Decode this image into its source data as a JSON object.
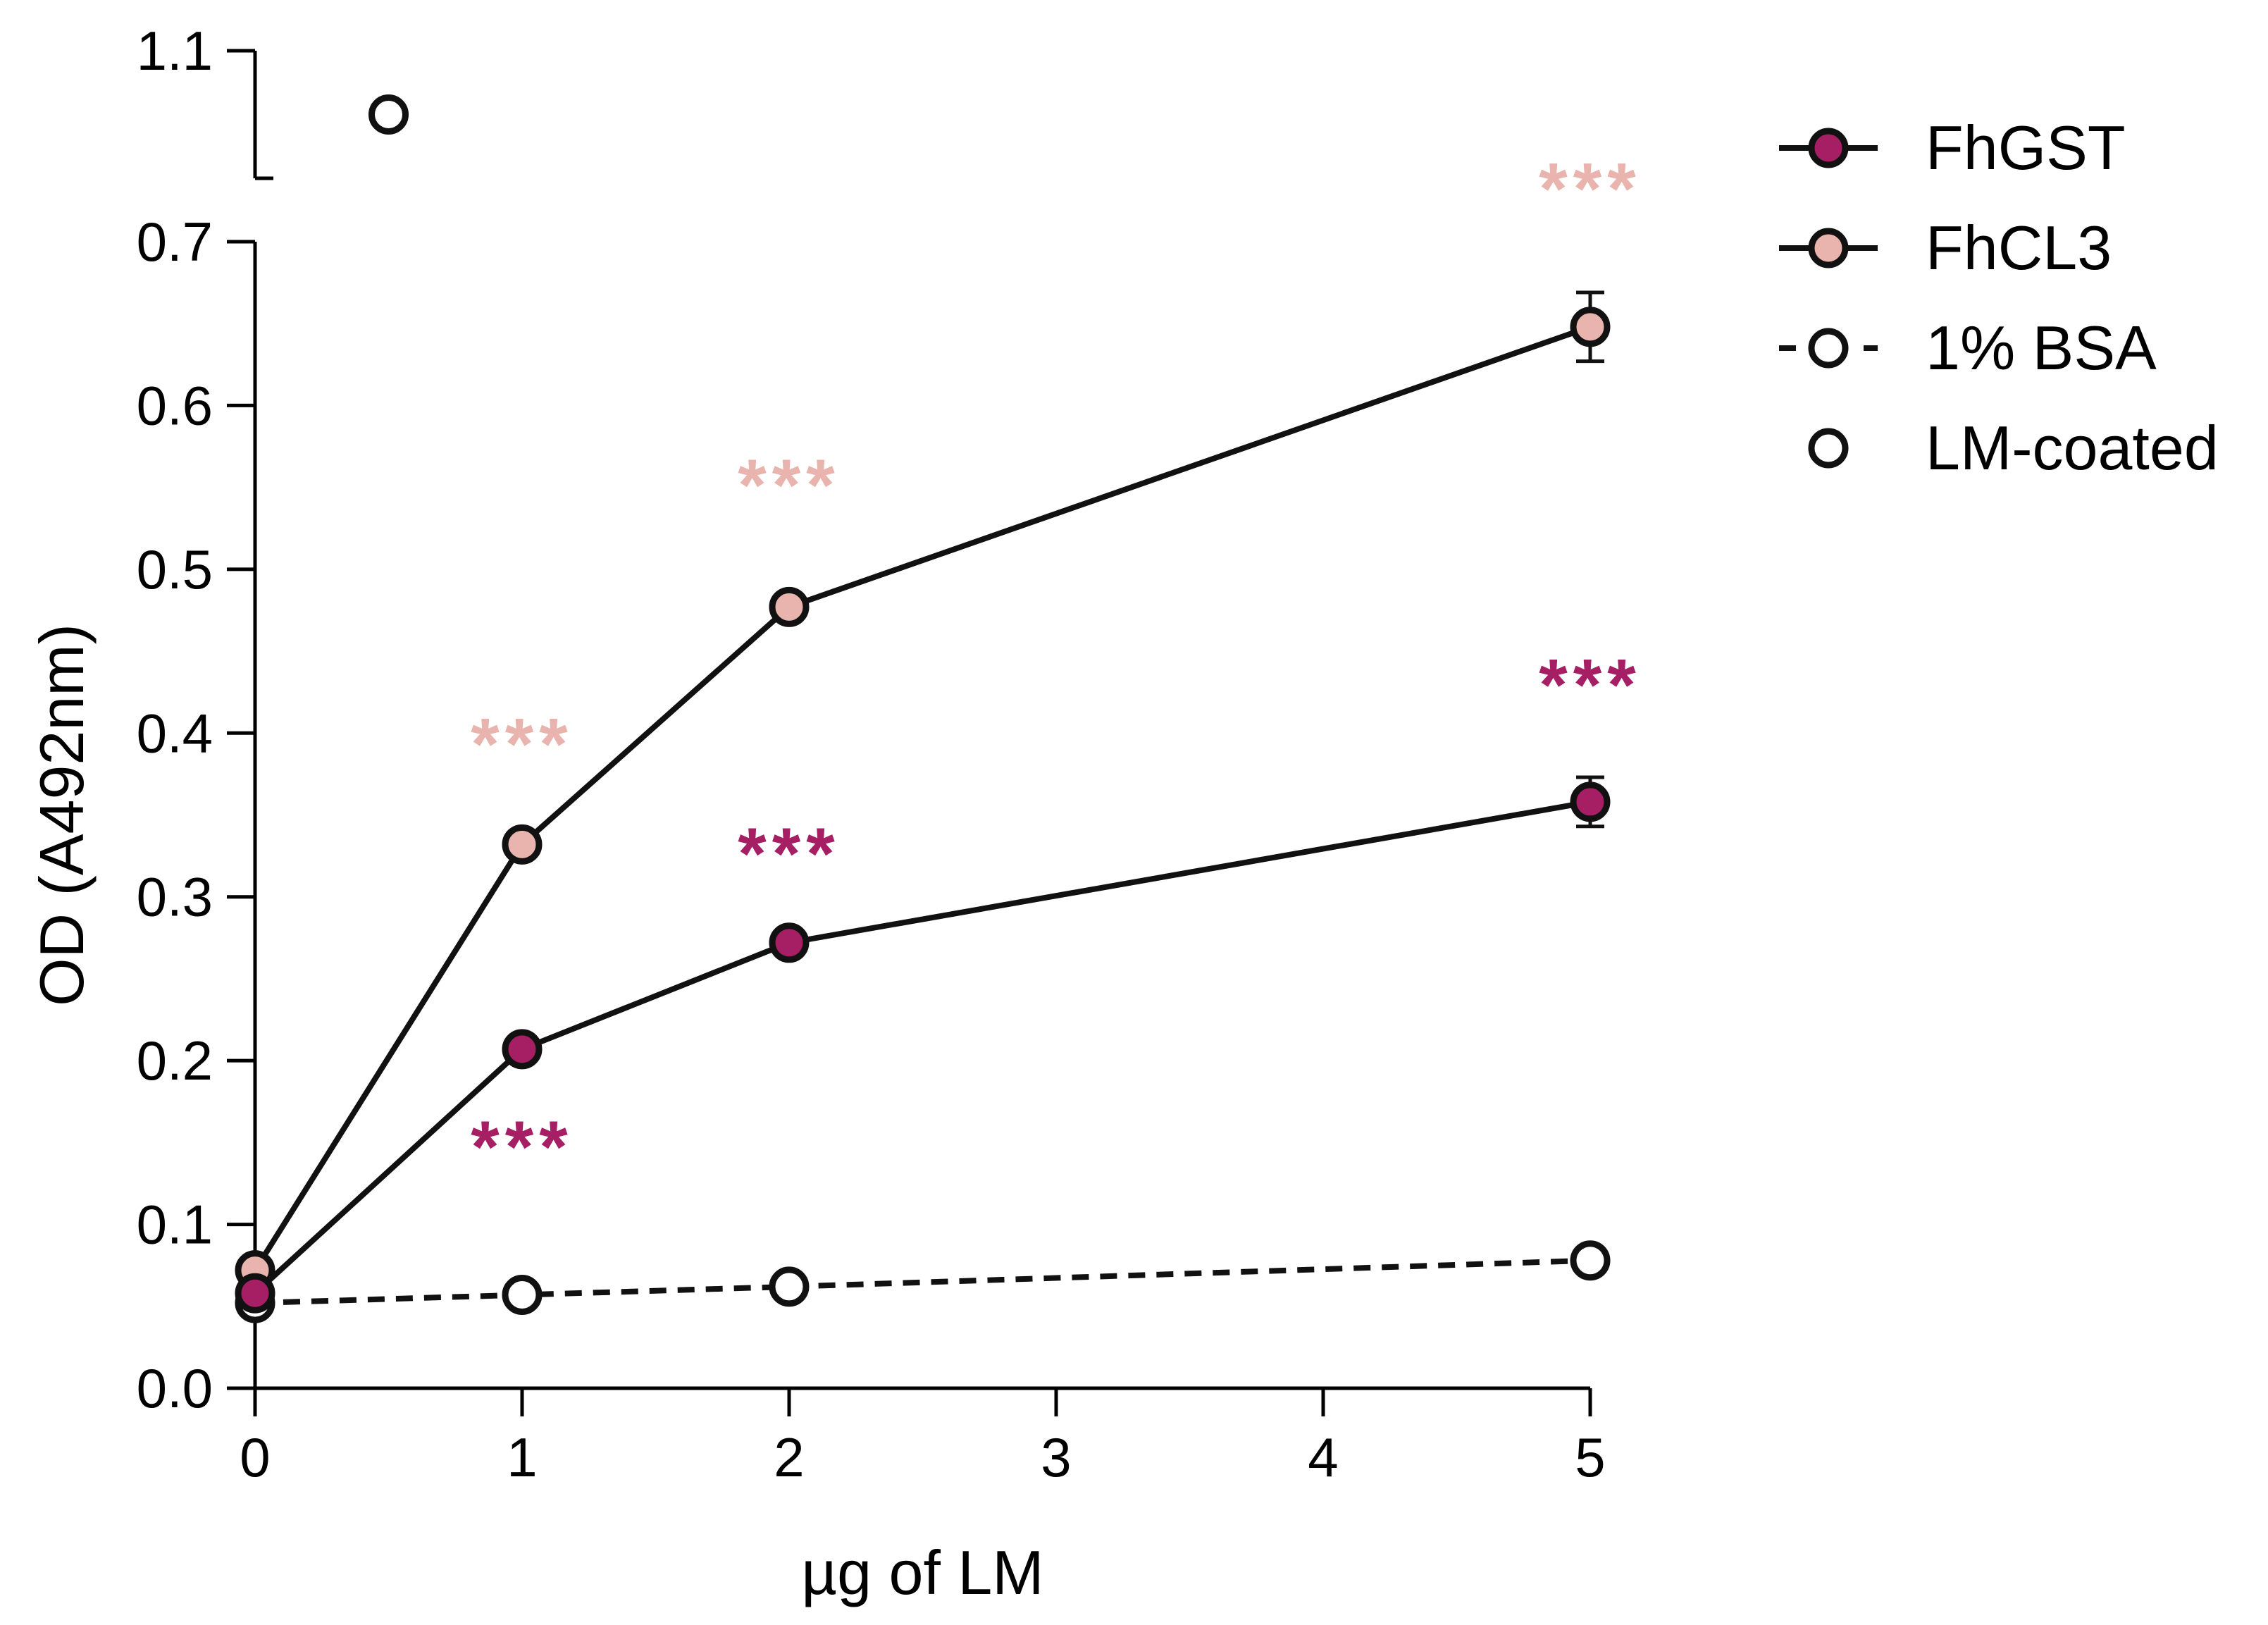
{
  "chart_data": {
    "type": "line",
    "xlabel": "µg of LM",
    "ylabel": "OD (A492nm)",
    "x_ticks": [
      "0",
      "1",
      "2",
      "3",
      "4",
      "5"
    ],
    "y_ticks": [
      "0.0",
      "0.1",
      "0.2",
      "0.3",
      "0.4",
      "0.5",
      "0.6",
      "0.7"
    ],
    "y_break_ticks": [
      "1.1"
    ],
    "ylim_lower": [
      0,
      0.7
    ],
    "ylim_upper": [
      1.02,
      1.1
    ],
    "xlim": [
      0,
      5
    ],
    "colors": {
      "fhgst": "#a61e63",
      "fhcl3": "#e8b4ad",
      "bsa": "#ffffff",
      "lm": "#ffffff",
      "stroke": "#111111"
    },
    "series": [
      {
        "name": "FhGST",
        "key": "fhgst",
        "line": "solid",
        "x": [
          0,
          1,
          2,
          5
        ],
        "values": [
          0.058,
          0.207,
          0.272,
          0.358
        ],
        "errors": [
          0,
          0,
          0,
          0.015
        ]
      },
      {
        "name": "FhCL3",
        "key": "fhcl3",
        "line": "solid",
        "x": [
          0,
          1,
          2,
          5
        ],
        "values": [
          0.072,
          0.332,
          0.477,
          0.648
        ],
        "errors": [
          0,
          0,
          0,
          0.021
        ]
      },
      {
        "name": "1% BSA",
        "key": "bsa",
        "line": "dashed",
        "x": [
          0,
          1,
          2,
          5
        ],
        "values": [
          0.052,
          0.057,
          0.062,
          0.078
        ],
        "errors": [
          0,
          0,
          0,
          0
        ]
      },
      {
        "name": "LM-coated",
        "key": "lm",
        "line": "none",
        "x": [
          0.5
        ],
        "values": [
          1.06
        ],
        "errors": [
          0
        ]
      }
    ],
    "annotations": [
      {
        "text": "***",
        "x": 1,
        "y": 0.378,
        "key": "fhcl3"
      },
      {
        "text": "***",
        "x": 2,
        "y": 0.536,
        "key": "fhcl3"
      },
      {
        "text": "***",
        "x": 5,
        "y": 0.717,
        "key": "fhcl3"
      },
      {
        "text": "***",
        "x": 1,
        "y": 0.132,
        "key": "fhgst"
      },
      {
        "text": "***",
        "x": 2,
        "y": 0.311,
        "key": "fhgst"
      },
      {
        "text": "***",
        "x": 5,
        "y": 0.414,
        "key": "fhgst"
      }
    ],
    "legend": {
      "position": "top-right",
      "items": [
        {
          "label": "FhGST",
          "key": "fhgst",
          "line": "solid"
        },
        {
          "label": "FhCL3",
          "key": "fhcl3",
          "line": "solid"
        },
        {
          "label": "1% BSA",
          "key": "bsa",
          "line": "dashed"
        },
        {
          "label": "LM-coated",
          "key": "lm",
          "line": "none"
        }
      ]
    }
  }
}
